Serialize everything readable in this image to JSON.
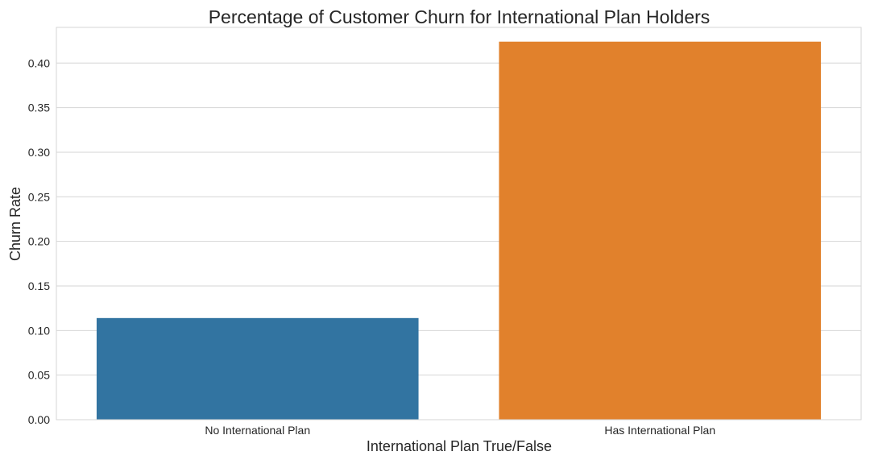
{
  "chart_data": {
    "type": "bar",
    "title": "Percentage of Customer Churn for International Plan Holders",
    "xlabel": "International Plan True/False",
    "ylabel": "Churn Rate",
    "categories": [
      "No International Plan",
      "Has International Plan"
    ],
    "values": [
      0.114,
      0.424
    ],
    "colors": [
      "#3274a1",
      "#e1812c"
    ],
    "ylim": [
      0,
      0.44
    ],
    "yticks": [
      0.0,
      0.05,
      0.1,
      0.15,
      0.2,
      0.25,
      0.3,
      0.35,
      0.4
    ],
    "ytick_labels": [
      "0.00",
      "0.05",
      "0.10",
      "0.15",
      "0.20",
      "0.25",
      "0.30",
      "0.35",
      "0.40"
    ],
    "grid": true,
    "legend": "none"
  }
}
